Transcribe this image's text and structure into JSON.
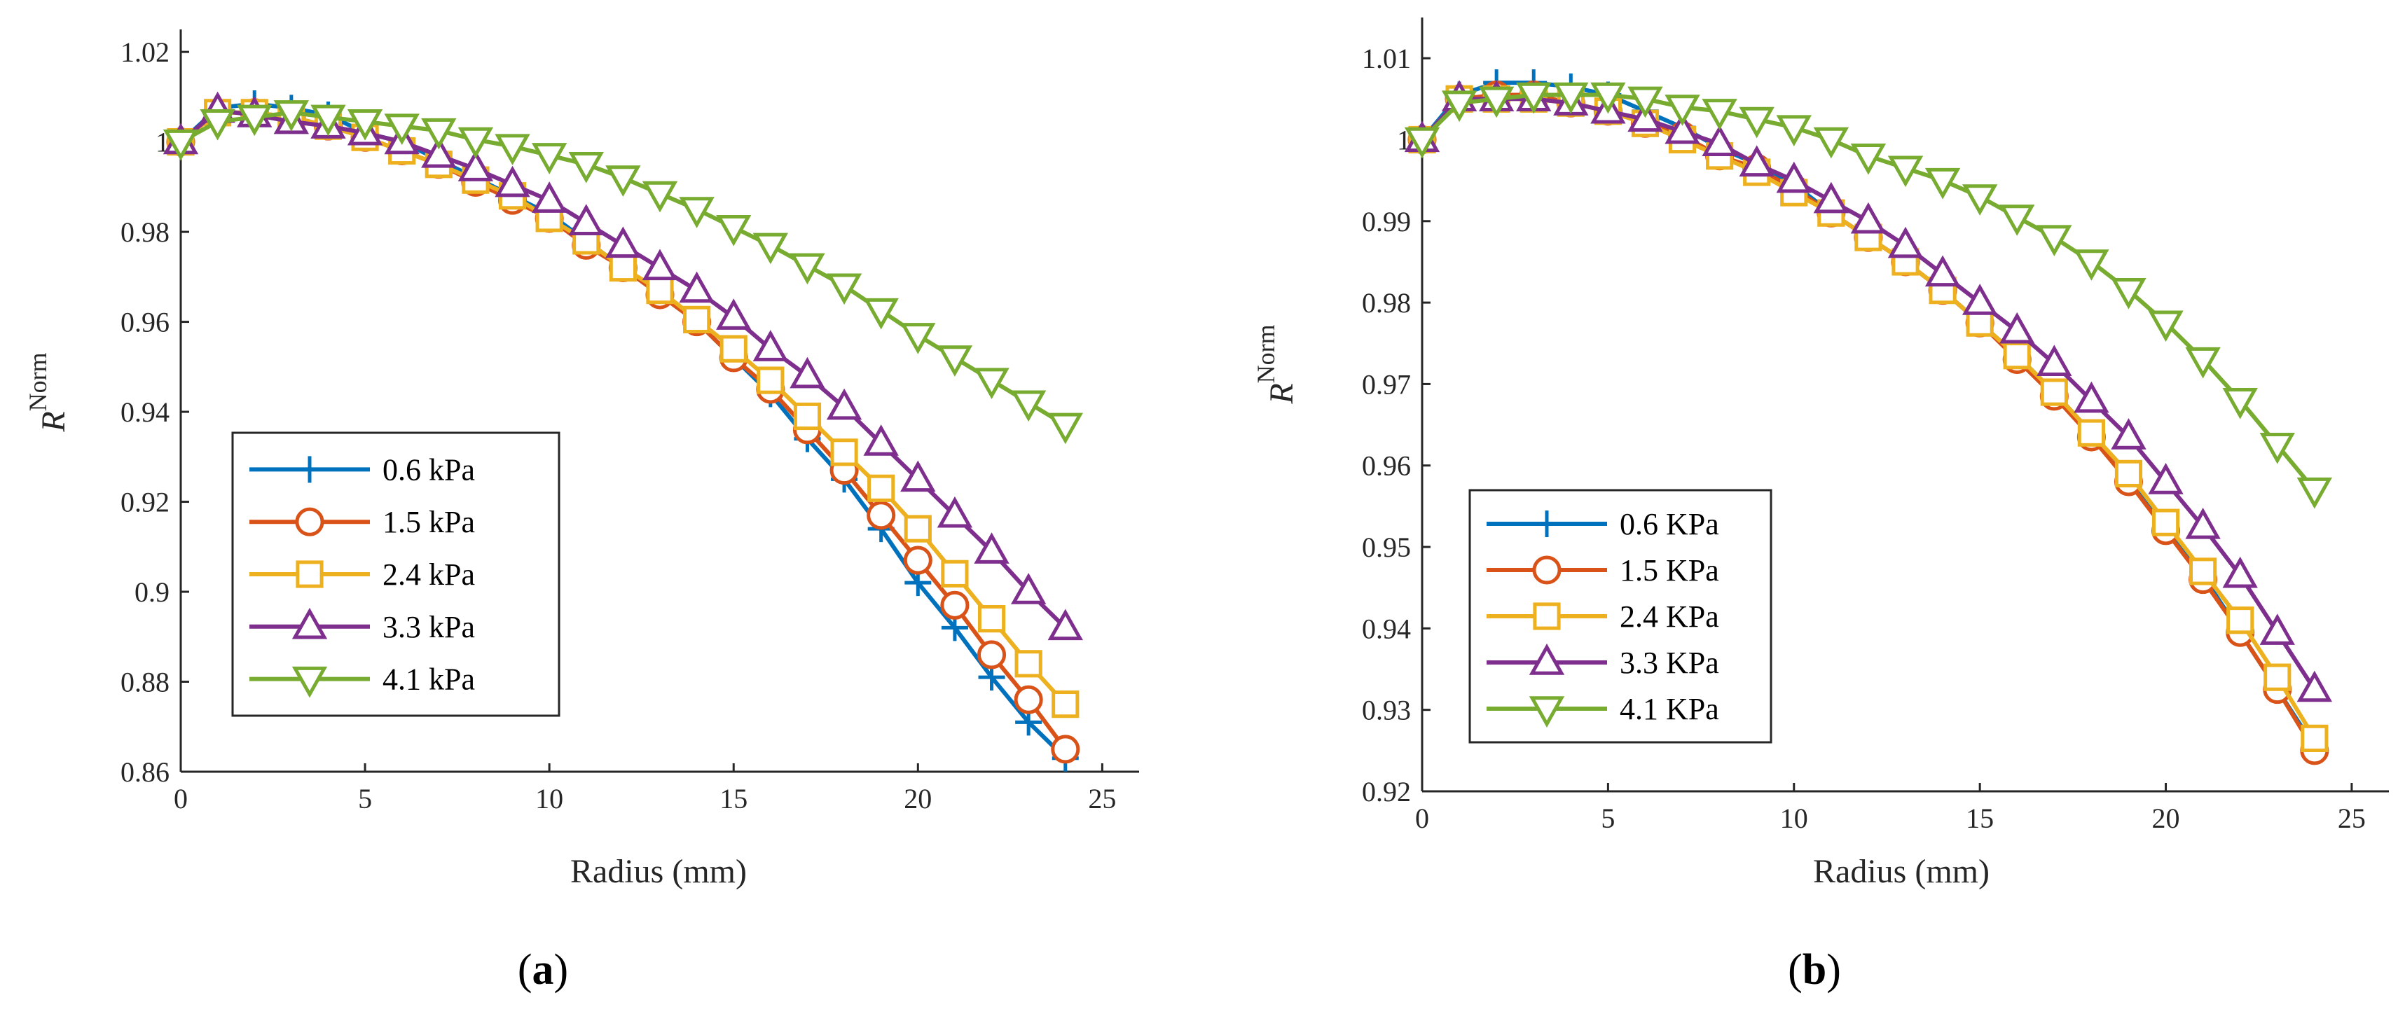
{
  "chart_data": [
    {
      "type": "line",
      "panel_label": "a",
      "xlabel": "Radius (mm)",
      "ylabel_main": "R",
      "ylabel_sup": "Norm",
      "xlim": [
        0,
        26
      ],
      "ylim": [
        0.86,
        1.025
      ],
      "xticks": [
        0,
        5,
        10,
        15,
        20,
        25
      ],
      "xtick_labels": [
        "0",
        "5",
        "10",
        "15",
        "20",
        "25"
      ],
      "yticks": [
        0.86,
        0.88,
        0.9,
        0.92,
        0.94,
        0.96,
        0.98,
        1.0,
        1.02
      ],
      "ytick_labels": [
        "0.86",
        "0.88",
        "0.9",
        "0.92",
        "0.94",
        "0.96",
        "0.98",
        "1",
        "1.02"
      ],
      "legend_position": "lower-left",
      "x": [
        0,
        1,
        2,
        3,
        4,
        5,
        6,
        7,
        8,
        9,
        10,
        11,
        12,
        13,
        14,
        15,
        16,
        17,
        18,
        19,
        20,
        21,
        22,
        23,
        24
      ],
      "series": [
        {
          "name": "0.6 kPa",
          "color": "#0072BD",
          "marker": "plus",
          "values": [
            1.0,
            1.0075,
            1.0085,
            1.0075,
            1.006,
            1.002,
            1.0,
            0.996,
            0.992,
            0.988,
            0.984,
            0.978,
            0.972,
            0.966,
            0.96,
            0.952,
            0.944,
            0.934,
            0.925,
            0.914,
            0.902,
            0.892,
            0.881,
            0.871,
            0.863
          ]
        },
        {
          "name": "1.5 kPa",
          "color": "#D95319",
          "marker": "circle",
          "values": [
            1.0,
            1.0065,
            1.0065,
            1.0055,
            1.0035,
            1.001,
            0.998,
            0.995,
            0.991,
            0.987,
            0.983,
            0.977,
            0.972,
            0.966,
            0.96,
            0.952,
            0.945,
            0.936,
            0.927,
            0.917,
            0.907,
            0.897,
            0.886,
            0.876,
            0.865
          ]
        },
        {
          "name": "2.4 kPa",
          "color": "#EDB120",
          "marker": "square",
          "values": [
            1.0,
            1.0065,
            1.0065,
            1.0055,
            1.0035,
            1.001,
            0.998,
            0.995,
            0.9915,
            0.988,
            0.983,
            0.978,
            0.972,
            0.967,
            0.9605,
            0.954,
            0.947,
            0.939,
            0.931,
            0.923,
            0.914,
            0.904,
            0.894,
            0.884,
            0.875
          ]
        },
        {
          "name": "3.3 kPa",
          "color": "#7E2F8E",
          "marker": "triangle-up",
          "values": [
            1.0,
            1.007,
            1.006,
            1.0045,
            1.0035,
            1.002,
            1.0,
            0.997,
            0.994,
            0.9905,
            0.987,
            0.982,
            0.977,
            0.972,
            0.967,
            0.961,
            0.954,
            0.948,
            0.941,
            0.933,
            0.925,
            0.917,
            0.909,
            0.9,
            0.892
          ]
        },
        {
          "name": "4.1 kPa",
          "color": "#77AC30",
          "marker": "triangle-down",
          "values": [
            1.0,
            1.0045,
            1.0055,
            1.0065,
            1.0055,
            1.0045,
            1.0035,
            1.0025,
            1.0005,
            0.999,
            0.997,
            0.995,
            0.992,
            0.9885,
            0.985,
            0.981,
            0.977,
            0.9725,
            0.968,
            0.9625,
            0.957,
            0.952,
            0.947,
            0.942,
            0.937
          ]
        }
      ]
    },
    {
      "type": "line",
      "panel_label": "b",
      "xlabel": "Radius (mm)",
      "ylabel_main": "R",
      "ylabel_sup": "Norm",
      "xlim": [
        0,
        26
      ],
      "ylim": [
        0.92,
        1.015
      ],
      "xticks": [
        0,
        5,
        10,
        15,
        20,
        25
      ],
      "xtick_labels": [
        "0",
        "5",
        "10",
        "15",
        "20",
        "25"
      ],
      "yticks": [
        0.92,
        0.93,
        0.94,
        0.95,
        0.96,
        0.97,
        0.98,
        0.99,
        1.0,
        1.01
      ],
      "ytick_labels": [
        "0.92",
        "0.93",
        "0.94",
        "0.95",
        "0.96",
        "0.97",
        "0.98",
        "0.99",
        "1",
        "1.01"
      ],
      "legend_position": "lower-left",
      "x": [
        0,
        1,
        2,
        3,
        4,
        5,
        6,
        7,
        8,
        9,
        10,
        11,
        12,
        13,
        14,
        15,
        16,
        17,
        18,
        19,
        20,
        21,
        22,
        23,
        24
      ],
      "series": [
        {
          "name": "0.6 KPa",
          "color": "#0072BD",
          "marker": "plus",
          "values": [
            1.0,
            1.0055,
            1.007,
            1.007,
            1.0065,
            1.0055,
            1.0035,
            1.0015,
            0.999,
            0.997,
            0.9945,
            0.991,
            0.988,
            0.985,
            0.9815,
            0.9775,
            0.9735,
            0.969,
            0.964,
            0.9585,
            0.9525,
            0.9465,
            0.9395,
            0.9325,
            0.9255
          ]
        },
        {
          "name": "1.5 KPa",
          "color": "#D95319",
          "marker": "circle",
          "values": [
            1.0,
            1.005,
            1.0055,
            1.0055,
            1.0045,
            1.0035,
            1.002,
            1.0005,
            0.998,
            0.9965,
            0.994,
            0.991,
            0.988,
            0.985,
            0.9815,
            0.9775,
            0.973,
            0.9685,
            0.9635,
            0.958,
            0.952,
            0.946,
            0.9395,
            0.9325,
            0.925
          ]
        },
        {
          "name": "2.4 KPa",
          "color": "#EDB120",
          "marker": "square",
          "values": [
            1.0,
            1.005,
            1.005,
            1.005,
            1.0045,
            1.0035,
            1.002,
            1.0,
            0.998,
            0.996,
            0.9935,
            0.991,
            0.988,
            0.985,
            0.9815,
            0.9775,
            0.9735,
            0.969,
            0.964,
            0.959,
            0.953,
            0.947,
            0.941,
            0.934,
            0.9265
          ]
        },
        {
          "name": "3.3 KPa",
          "color": "#7E2F8E",
          "marker": "triangle-up",
          "values": [
            1.0,
            1.005,
            1.005,
            1.005,
            1.0045,
            1.0035,
            1.0025,
            1.001,
            0.9995,
            0.997,
            0.995,
            0.9925,
            0.99,
            0.987,
            0.9835,
            0.98,
            0.9765,
            0.9725,
            0.968,
            0.9635,
            0.958,
            0.9525,
            0.9465,
            0.9395,
            0.9325
          ]
        },
        {
          "name": "4.1 KPa",
          "color": "#77AC30",
          "marker": "triangle-down",
          "values": [
            1.0,
            1.0045,
            1.005,
            1.0055,
            1.0055,
            1.0055,
            1.005,
            1.004,
            1.0035,
            1.0025,
            1.0015,
            1.0,
            0.998,
            0.9965,
            0.995,
            0.993,
            0.9905,
            0.988,
            0.985,
            0.9815,
            0.9775,
            0.973,
            0.968,
            0.9625,
            0.957
          ]
        }
      ]
    }
  ]
}
